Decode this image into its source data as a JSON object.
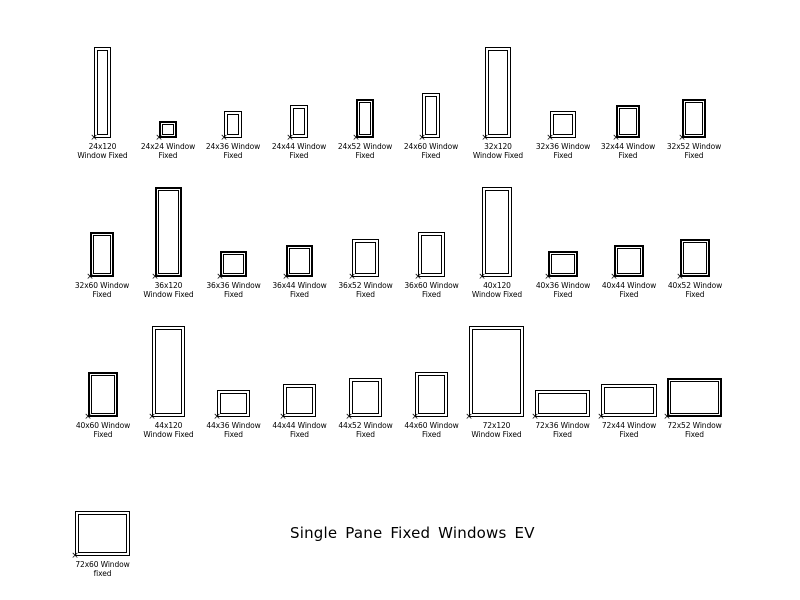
{
  "title": "Single Pane Fixed Windows EV",
  "windows": [
    {
      "line1": "24x120",
      "line2": "Window Fixed"
    },
    {
      "line1": "24x24 Window",
      "line2": "Fixed"
    },
    {
      "line1": "24x36 Window",
      "line2": "Fixed"
    },
    {
      "line1": "24x44 Window",
      "line2": "Fixed"
    },
    {
      "line1": "24x52 Window",
      "line2": "Fixed"
    },
    {
      "line1": "24x60 Window",
      "line2": "Fixed"
    },
    {
      "line1": "32x120",
      "line2": "Window Fixed"
    },
    {
      "line1": "32x36 Window",
      "line2": "Fixed"
    },
    {
      "line1": "32x44 Window",
      "line2": "Fixed"
    },
    {
      "line1": "32x52 Window",
      "line2": "Fixed"
    },
    {
      "line1": "32x60 Window",
      "line2": "Fixed"
    },
    {
      "line1": "36x120",
      "line2": "Window Fixed"
    },
    {
      "line1": "36x36 Window",
      "line2": "Fixed"
    },
    {
      "line1": "36x44 Window",
      "line2": "Fixed"
    },
    {
      "line1": "36x52 Window",
      "line2": "Fixed"
    },
    {
      "line1": "36x60 Window",
      "line2": "Fixed"
    },
    {
      "line1": "40x120",
      "line2": "Window Fixed"
    },
    {
      "line1": "40x36 Window",
      "line2": "Fixed"
    },
    {
      "line1": "40x44 Window",
      "line2": "Fixed"
    },
    {
      "line1": "40x52 Window",
      "line2": "Fixed"
    },
    {
      "line1": "40x60 Window",
      "line2": "Fixed"
    },
    {
      "line1": "44x120",
      "line2": "Window Fixed"
    },
    {
      "line1": "44x36 Window",
      "line2": "Fixed"
    },
    {
      "line1": "44x44 Window",
      "line2": "Fixed"
    },
    {
      "line1": "44x52 Window",
      "line2": "Fixed"
    },
    {
      "line1": "44x60 Window",
      "line2": "Fixed"
    },
    {
      "line1": "72x120",
      "line2": "Window Fixed"
    },
    {
      "line1": "72x36 Window",
      "line2": "Fixed"
    },
    {
      "line1": "72x44 Window",
      "line2": "Fixed"
    },
    {
      "line1": "72x52 Window",
      "line2": "Fixed"
    },
    {
      "line1": "72x60 Window",
      "line2": "fixed"
    }
  ]
}
